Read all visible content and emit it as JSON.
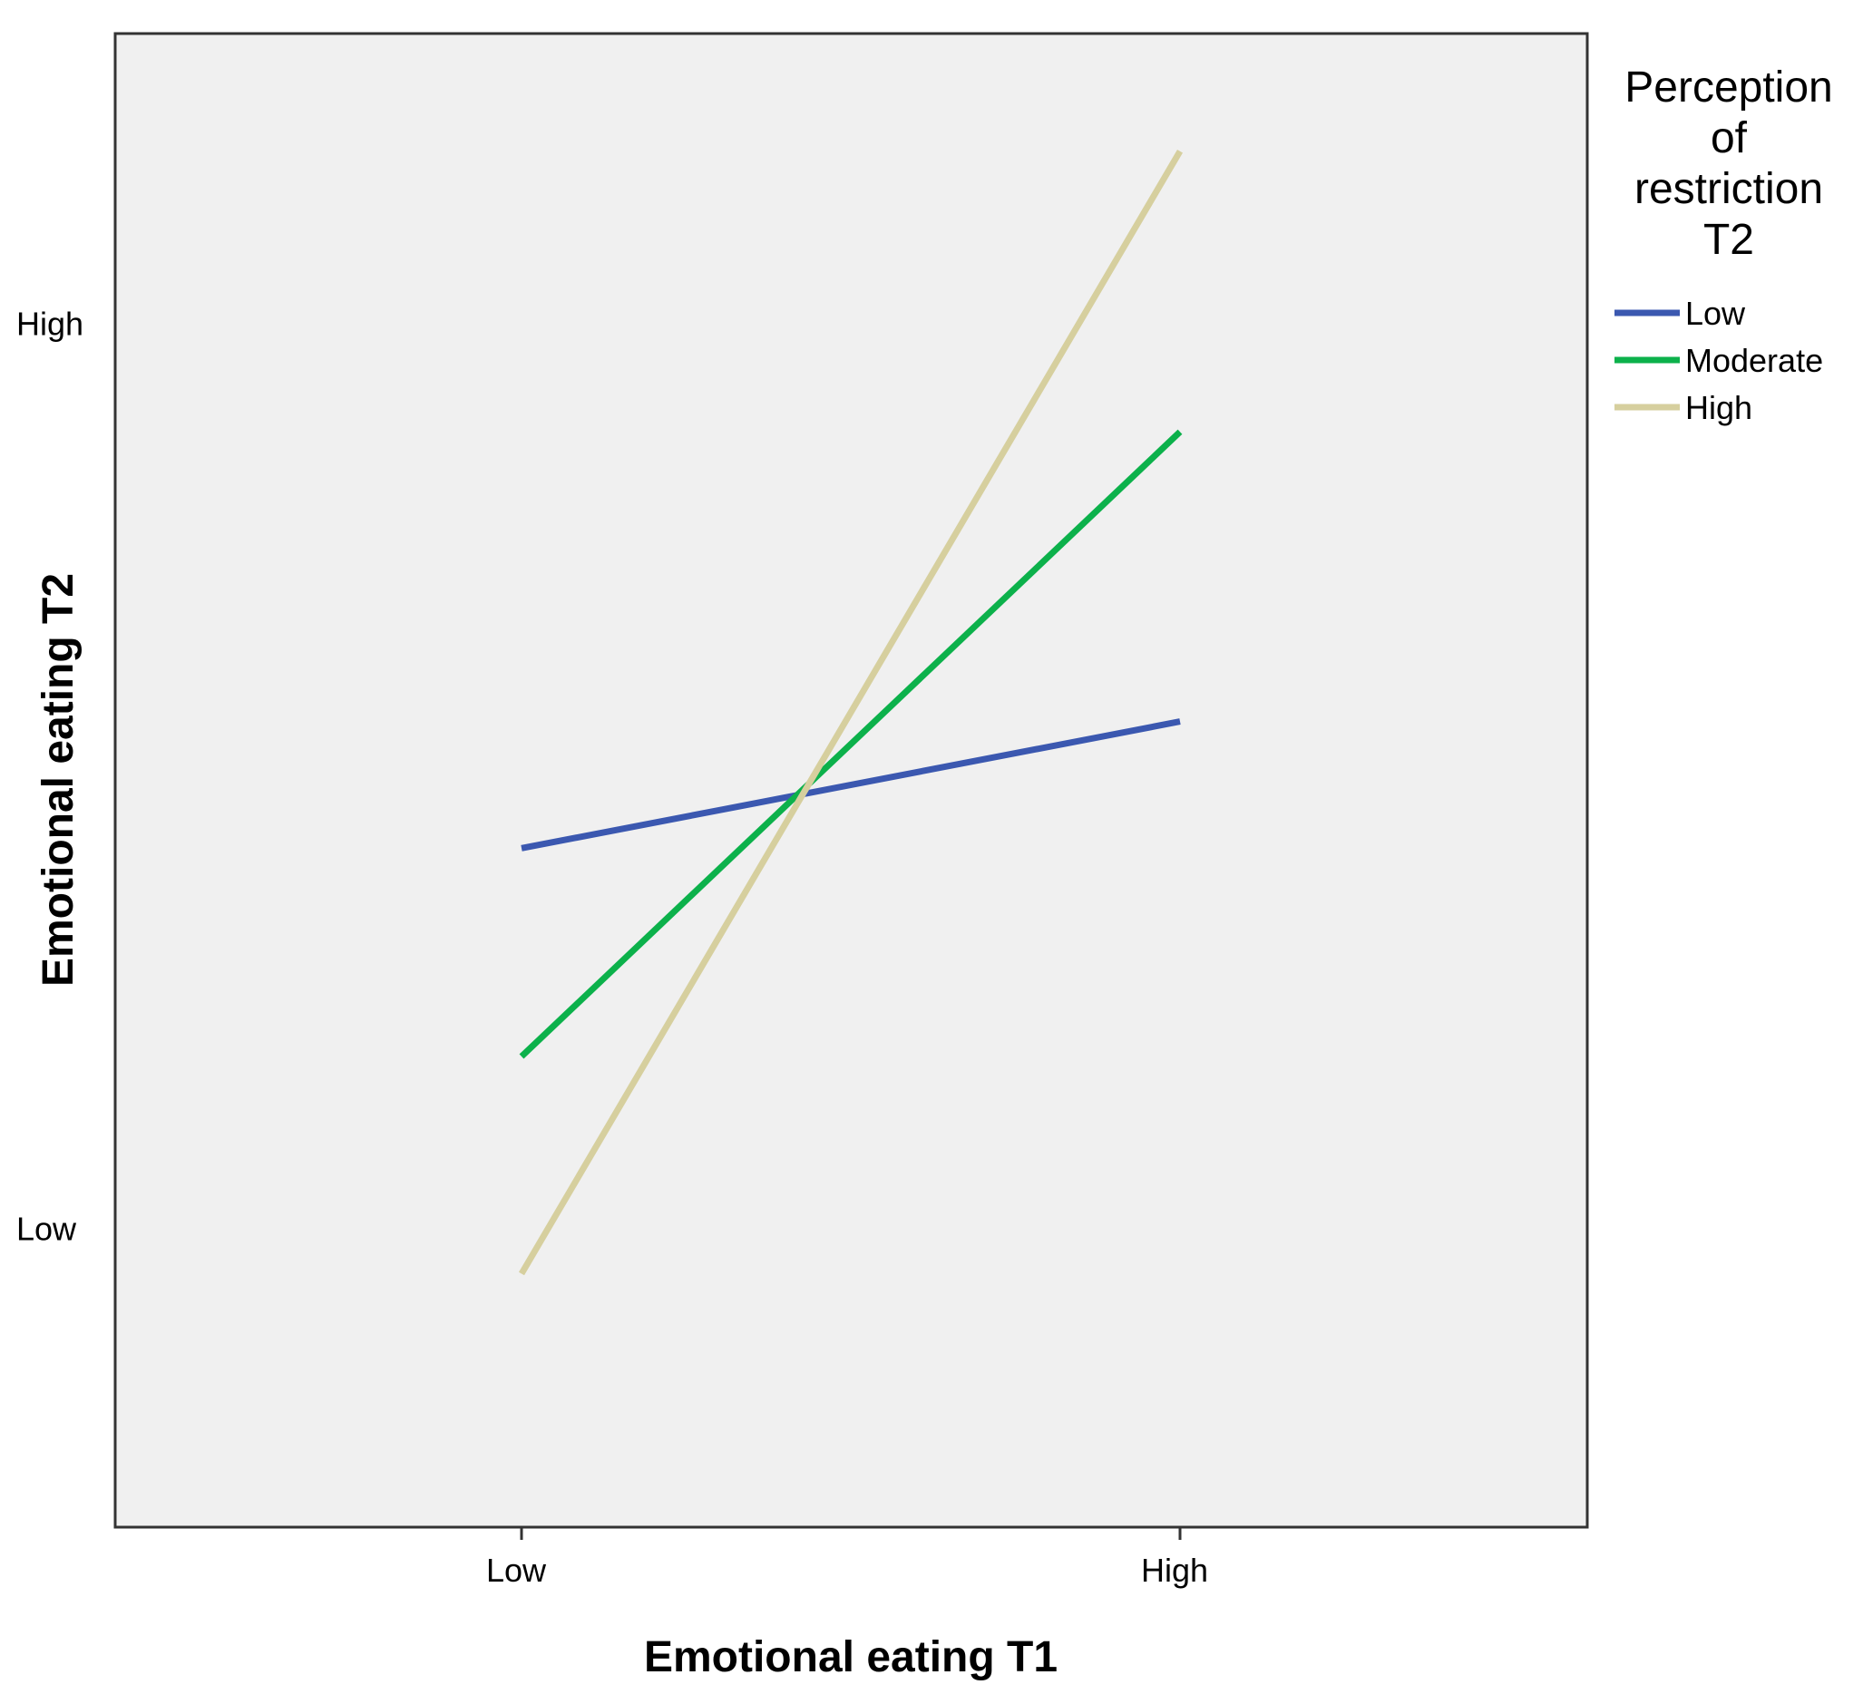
{
  "chart_data": {
    "type": "line",
    "title": "",
    "xlabel": "Emotional eating T1",
    "ylabel": "Emotional eating T2",
    "categories": [
      "Low",
      "High"
    ],
    "y_ticks": [
      {
        "label": "Low",
        "value": 0
      },
      {
        "label": "High",
        "value": 1
      }
    ],
    "ylim": [
      -0.33,
      1.32
    ],
    "grid": false,
    "legend": {
      "title": "Perception of restriction T2",
      "title_lines": [
        "Perception",
        "of",
        "restriction",
        "T2"
      ],
      "position": "right"
    },
    "series": [
      {
        "name": "Low",
        "color": "#3b58b0",
        "values": [
          0.42,
          0.56
        ]
      },
      {
        "name": "Moderate",
        "color": "#0cb14b",
        "values": [
          0.19,
          0.88
        ]
      },
      {
        "name": "High",
        "color": "#d6cf9e",
        "values": [
          -0.05,
          1.19
        ]
      }
    ],
    "plot_background": "#f0f0f0"
  }
}
